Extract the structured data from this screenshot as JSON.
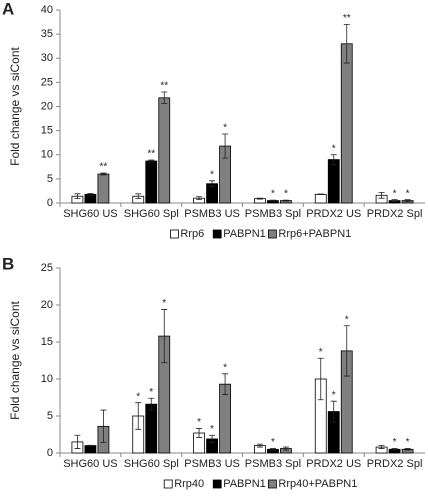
{
  "chart_data": [
    {
      "type": "bar",
      "panel_label": "A",
      "y_label": "Fold change vs siCont",
      "categories": [
        "SHG60 US",
        "SHG60 Spl",
        "PSMB3 US",
        "PSMB3 Spl",
        "PRDX2 US",
        "PRDX2 Spl"
      ],
      "series": [
        {
          "name": "Rrp6",
          "color": "#ffffff",
          "values": [
            1.4,
            1.4,
            1.0,
            0.9,
            1.8,
            1.6
          ],
          "errors": [
            0.5,
            0.5,
            0.3,
            0.1,
            0.05,
            0.6
          ],
          "significance": [
            null,
            null,
            null,
            null,
            null,
            null
          ]
        },
        {
          "name": "PABPN1",
          "color": "#000000",
          "values": [
            1.8,
            8.7,
            4.0,
            0.5,
            9.0,
            0.5
          ],
          "errors": [
            0.2,
            0.2,
            0.6,
            0.1,
            1.0,
            0.2
          ],
          "significance": [
            null,
            "**",
            "*",
            "*",
            "*",
            "*"
          ]
        },
        {
          "name": "Rrp6+PABPN1",
          "color": "#808080",
          "values": [
            6.0,
            21.8,
            11.8,
            0.5,
            33.0,
            0.5
          ],
          "errors": [
            0.2,
            1.2,
            2.5,
            0.1,
            4.0,
            0.2
          ],
          "significance": [
            "**",
            "**",
            "*",
            "*",
            "**",
            "*"
          ]
        }
      ],
      "ylim": [
        0,
        40
      ],
      "yticks": [
        0,
        5,
        10,
        15,
        20,
        25,
        30,
        35,
        40
      ],
      "grid": false,
      "legend": "bottom"
    },
    {
      "type": "bar",
      "panel_label": "B",
      "y_label": "Fold change vs siCont",
      "categories": [
        "SHG60 US",
        "SHG60 Spl",
        "PSMB3 US",
        "PSMB3 Spl",
        "PRDX2 US",
        "PRDX2 Spl"
      ],
      "series": [
        {
          "name": "Rrp40",
          "color": "#ffffff",
          "values": [
            1.5,
            5.0,
            2.7,
            1.0,
            10.0,
            0.8
          ],
          "errors": [
            0.9,
            1.8,
            0.6,
            0.2,
            2.8,
            0.2
          ],
          "significance": [
            null,
            "*",
            "*",
            null,
            "*",
            null
          ]
        },
        {
          "name": "PABPN1",
          "color": "#000000",
          "values": [
            1.0,
            6.6,
            1.9,
            0.5,
            5.6,
            0.5
          ],
          "errors": [
            0.05,
            0.8,
            0.5,
            0.1,
            1.4,
            0.1
          ],
          "significance": [
            null,
            "*",
            "*",
            "*",
            "*",
            "*"
          ]
        },
        {
          "name": "Rrp40+PABPN1",
          "color": "#808080",
          "values": [
            3.6,
            15.8,
            9.3,
            0.6,
            13.8,
            0.5
          ],
          "errors": [
            2.2,
            3.6,
            1.4,
            0.2,
            3.4,
            0.1
          ],
          "significance": [
            null,
            "*",
            "*",
            null,
            "*",
            "*"
          ]
        }
      ],
      "ylim": [
        0,
        25
      ],
      "yticks": [
        0,
        5,
        10,
        15,
        20,
        25
      ],
      "grid": false,
      "legend": "bottom"
    }
  ]
}
